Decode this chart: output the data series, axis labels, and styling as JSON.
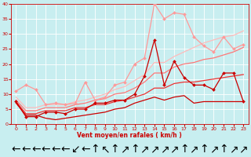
{
  "background_color": "#c8eef0",
  "grid_color": "#ffffff",
  "xlabel": "Vent moyen/en rafales ( km/h )",
  "xlim": [
    -0.5,
    23.5
  ],
  "ylim": [
    0,
    40
  ],
  "yticks": [
    0,
    5,
    10,
    15,
    20,
    25,
    30,
    35,
    40
  ],
  "xticks": [
    0,
    1,
    2,
    3,
    4,
    5,
    6,
    7,
    8,
    9,
    10,
    11,
    12,
    13,
    14,
    15,
    16,
    17,
    18,
    19,
    20,
    21,
    22,
    23
  ],
  "lines": [
    {
      "x": [
        0,
        1,
        2,
        3,
        4,
        5,
        6,
        7,
        8,
        9,
        10,
        11,
        12,
        13,
        14,
        15,
        16,
        17,
        18,
        19,
        20,
        21,
        22,
        23
      ],
      "y": [
        7.5,
        2.5,
        2.5,
        4.0,
        4.0,
        3.5,
        5.0,
        5.0,
        7.0,
        7.0,
        8.0,
        8.0,
        10.0,
        16.0,
        28.0,
        13.0,
        21.0,
        15.5,
        13.0,
        13.0,
        11.5,
        17.0,
        17.0,
        7.5
      ],
      "color": "#cc0000",
      "linewidth": 0.9,
      "marker": "D",
      "markersize": 2.0,
      "zorder": 5
    },
    {
      "x": [
        0,
        1,
        2,
        3,
        4,
        5,
        6,
        7,
        8,
        9,
        10,
        11,
        12,
        13,
        14,
        15,
        16,
        17,
        18,
        19,
        20,
        21,
        22,
        23
      ],
      "y": [
        11.0,
        13.0,
        11.5,
        6.5,
        7.0,
        6.5,
        7.0,
        14.0,
        8.0,
        9.0,
        13.0,
        14.0,
        20.0,
        22.0,
        40.0,
        35.0,
        37.0,
        36.5,
        29.0,
        26.0,
        24.0,
        29.0,
        25.0,
        26.5
      ],
      "color": "#ff9999",
      "linewidth": 0.9,
      "marker": "D",
      "markersize": 2.0,
      "zorder": 4
    },
    {
      "x": [
        0,
        1,
        2,
        3,
        4,
        5,
        6,
        7,
        8,
        9,
        10,
        11,
        12,
        13,
        14,
        15,
        16,
        17,
        18,
        19,
        20,
        21,
        22,
        23
      ],
      "y": [
        7.5,
        3.5,
        3.5,
        4.5,
        4.5,
        4.5,
        5.5,
        5.5,
        6.5,
        6.5,
        7.5,
        8.0,
        9.0,
        10.0,
        12.0,
        12.0,
        13.5,
        14.0,
        14.0,
        14.5,
        15.0,
        15.5,
        16.0,
        16.5
      ],
      "color": "#ee3333",
      "linewidth": 0.9,
      "marker": null,
      "markersize": 0,
      "zorder": 3
    },
    {
      "x": [
        0,
        1,
        2,
        3,
        4,
        5,
        6,
        7,
        8,
        9,
        10,
        11,
        12,
        13,
        14,
        15,
        16,
        17,
        18,
        19,
        20,
        21,
        22,
        23
      ],
      "y": [
        8.0,
        4.5,
        4.5,
        5.5,
        5.5,
        5.5,
        6.5,
        7.0,
        8.0,
        8.5,
        10.0,
        10.5,
        12.0,
        14.0,
        17.0,
        17.0,
        19.0,
        20.0,
        20.5,
        21.5,
        22.0,
        23.0,
        24.0,
        25.5
      ],
      "color": "#ff7777",
      "linewidth": 0.9,
      "marker": null,
      "markersize": 0,
      "zorder": 3
    },
    {
      "x": [
        0,
        1,
        2,
        3,
        4,
        5,
        6,
        7,
        8,
        9,
        10,
        11,
        12,
        13,
        14,
        15,
        16,
        17,
        18,
        19,
        20,
        21,
        22,
        23
      ],
      "y": [
        9.0,
        5.5,
        5.5,
        6.5,
        6.5,
        6.5,
        7.5,
        8.0,
        9.0,
        10.0,
        11.5,
        12.5,
        14.5,
        16.5,
        20.5,
        20.5,
        22.5,
        24.0,
        25.5,
        27.0,
        28.0,
        29.0,
        29.5,
        31.0
      ],
      "color": "#ffbbbb",
      "linewidth": 0.9,
      "marker": null,
      "markersize": 0,
      "zorder": 2
    },
    {
      "x": [
        0,
        1,
        2,
        3,
        4,
        5,
        6,
        7,
        8,
        9,
        10,
        11,
        12,
        13,
        14,
        15,
        16,
        17,
        18,
        19,
        20,
        21,
        22,
        23
      ],
      "y": [
        7.0,
        3.0,
        3.0,
        2.0,
        1.5,
        2.0,
        2.5,
        3.0,
        3.5,
        4.0,
        5.0,
        5.5,
        7.0,
        8.0,
        9.0,
        8.0,
        9.0,
        9.5,
        7.0,
        7.5,
        7.5,
        7.5,
        7.5,
        7.5
      ],
      "color": "#cc0000",
      "linewidth": 0.9,
      "marker": null,
      "markersize": 0,
      "zorder": 2
    }
  ],
  "arrow_chars": [
    "←",
    "←",
    "←",
    "←",
    "←",
    "←",
    "↙",
    "←",
    "↑",
    "↖",
    "↑",
    "↗",
    "↑",
    "↗",
    "↗",
    "↗",
    "↗",
    "↑",
    "↗",
    "↑",
    "↗",
    "↑",
    "↗",
    "↗"
  ]
}
